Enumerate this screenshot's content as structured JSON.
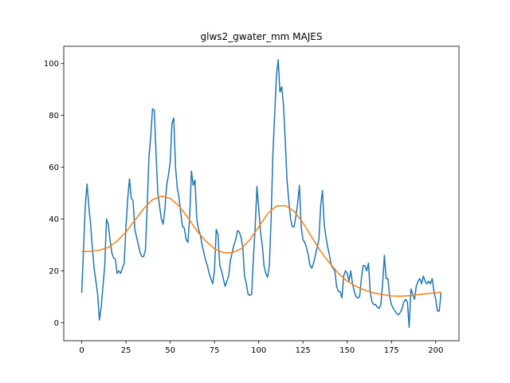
{
  "chart_data": {
    "type": "line",
    "title": "glws2_gwater_mm MAJES",
    "xlim": [
      -10.15,
      213.15
    ],
    "ylim": [
      -6.97,
      106.67
    ],
    "xticks": [
      0,
      25,
      50,
      75,
      100,
      125,
      150,
      175,
      200
    ],
    "yticks": [
      0,
      20,
      40,
      60,
      80,
      100
    ],
    "series": [
      {
        "color": "#1f77b4",
        "x": [
          0,
          1,
          2,
          3,
          4,
          5,
          6,
          7,
          8,
          9,
          10,
          11,
          12,
          13,
          14,
          15,
          16,
          17,
          18,
          19,
          20,
          21,
          22,
          23,
          24,
          25,
          26,
          27,
          28,
          29,
          30,
          31,
          32,
          33,
          34,
          35,
          36,
          37,
          38,
          39,
          40,
          41,
          42,
          43,
          44,
          45,
          46,
          47,
          48,
          49,
          50,
          51,
          52,
          53,
          54,
          55,
          56,
          57,
          58,
          59,
          60,
          61,
          62,
          63,
          64,
          65,
          66,
          67,
          68,
          69,
          70,
          71,
          72,
          73,
          74,
          75,
          76,
          77,
          78,
          79,
          80,
          81,
          82,
          83,
          84,
          85,
          86,
          87,
          88,
          89,
          90,
          91,
          92,
          93,
          94,
          95,
          96,
          97,
          98,
          99,
          100,
          101,
          102,
          103,
          104,
          105,
          106,
          107,
          108,
          109,
          110,
          111,
          112,
          113,
          114,
          115,
          116,
          117,
          118,
          119,
          120,
          121,
          122,
          123,
          124,
          125,
          126,
          127,
          128,
          129,
          130,
          131,
          132,
          133,
          134,
          135,
          136,
          137,
          138,
          139,
          140,
          141,
          142,
          143,
          144,
          145,
          146,
          147,
          148,
          149,
          150,
          151,
          152,
          153,
          154,
          155,
          156,
          157,
          158,
          159,
          160,
          161,
          162,
          163,
          164,
          165,
          166,
          167,
          168,
          169,
          170,
          171,
          172,
          173,
          174,
          175,
          176,
          177,
          178,
          179,
          180,
          181,
          182,
          183,
          184,
          185,
          186,
          187,
          188,
          189,
          190,
          191,
          192,
          193,
          194,
          195,
          196,
          197,
          198,
          199,
          200,
          201,
          202,
          203
        ],
        "values": [
          11.5,
          28,
          45,
          53.5,
          45,
          38,
          29,
          21,
          16,
          11,
          1,
          6,
          14,
          22,
          40,
          38,
          32,
          27,
          25,
          24.5,
          19,
          20,
          19,
          21,
          23,
          37,
          48,
          55.5,
          48,
          47,
          36,
          33,
          30,
          27,
          25.5,
          25.5,
          28,
          45,
          64,
          72,
          82.5,
          82,
          65,
          50,
          45,
          40,
          38,
          44,
          53,
          57,
          62,
          77,
          79,
          60,
          52,
          48,
          42,
          37,
          36.5,
          32,
          31,
          41,
          58.5,
          53,
          55,
          40,
          36,
          34,
          30,
          27,
          24,
          22,
          19,
          17,
          15,
          20,
          36,
          34,
          22,
          20,
          17,
          14,
          16,
          18,
          24,
          27,
          30,
          32,
          35.5,
          35,
          33,
          29,
          18,
          15,
          11,
          10.5,
          11,
          25,
          37,
          52.5,
          44,
          35,
          30,
          22,
          19,
          17.5,
          22,
          40,
          65,
          80,
          95,
          101.5,
          89,
          91,
          84,
          70,
          55,
          47,
          40,
          37,
          37,
          41,
          46,
          53,
          37,
          32,
          31,
          29,
          26,
          22,
          21,
          23,
          26,
          29,
          32,
          45,
          51,
          38,
          33,
          29,
          26,
          22,
          21,
          20,
          14,
          12,
          12,
          9.5,
          18,
          20,
          19,
          16,
          20,
          15,
          12,
          10,
          9.5,
          10,
          17,
          22,
          22,
          20,
          23,
          12,
          8,
          7,
          7,
          6,
          5.5,
          7,
          15,
          26,
          17,
          17,
          10,
          7,
          5.5,
          4.5,
          3.5,
          3,
          4,
          5.5,
          8,
          9,
          8,
          -1.8,
          13,
          11,
          9,
          14,
          16,
          17,
          15,
          18,
          16,
          15,
          16,
          15,
          17,
          12,
          9,
          4.5,
          4.5,
          11.5
        ]
      },
      {
        "color": "#ff7f0e",
        "x": [
          0,
          5,
          10,
          15,
          20,
          25,
          30,
          35,
          40,
          45,
          50,
          55,
          60,
          65,
          70,
          75,
          80,
          85,
          90,
          95,
          100,
          105,
          110,
          115,
          120,
          125,
          130,
          135,
          140,
          145,
          150,
          155,
          160,
          165,
          170,
          175,
          180,
          185,
          190,
          195,
          200,
          203
        ],
        "values": [
          27.5,
          27.5,
          28,
          29,
          31.5,
          35,
          39.5,
          44,
          47.5,
          48.8,
          48,
          45,
          40.5,
          35.5,
          31.5,
          28.5,
          27,
          27,
          28.5,
          32,
          37,
          42,
          45,
          45.2,
          43,
          38.5,
          33,
          27.5,
          23,
          19,
          16,
          14,
          12.5,
          11.5,
          10.8,
          10.3,
          10.2,
          10.4,
          10.8,
          11.2,
          11.5,
          11.8
        ]
      }
    ]
  }
}
